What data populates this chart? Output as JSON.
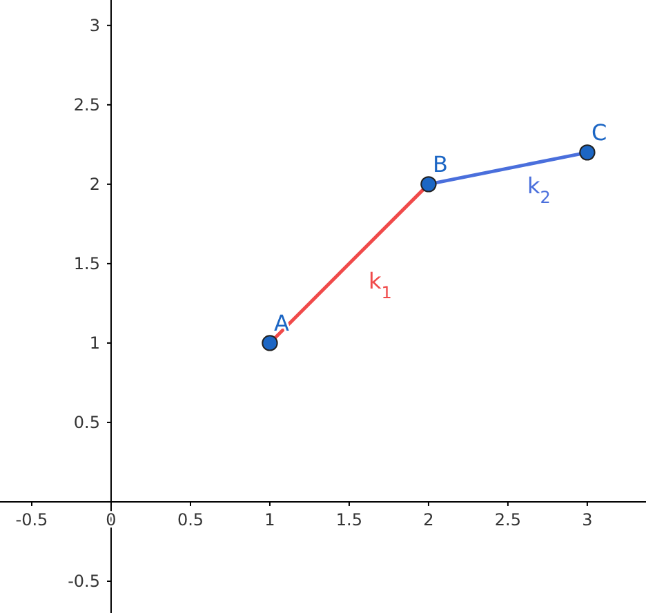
{
  "chart_data": {
    "type": "line",
    "xlim": [
      -0.7,
      3.37
    ],
    "ylim": [
      -0.7,
      3.16
    ],
    "xticks": [
      -0.5,
      0,
      0.5,
      1,
      1.5,
      2,
      2.5,
      3
    ],
    "yticks": [
      -0.5,
      {
        "value": 0,
        "label": null
      },
      0.5,
      1,
      1.5,
      2,
      2.5,
      3
    ],
    "grid": false,
    "series": [
      {
        "name": "k$_{1}$",
        "color": "#f04a4a",
        "x": [
          1,
          2
        ],
        "values": [
          1,
          2
        ]
      },
      {
        "name": "k$_{2}$",
        "color": "#4a6fdc",
        "x": [
          2,
          3
        ],
        "values": [
          2,
          2.2
        ]
      },
      {
        "type": "scatter",
        "color": "#1c66c4",
        "marker": "circle",
        "x": [
          1,
          2,
          3
        ],
        "values": [
          1,
          2,
          2.2
        ]
      }
    ],
    "annotations": [
      {
        "text": "A",
        "x": 1,
        "y": 1
      },
      {
        "text": "B",
        "x": 2,
        "y": 2
      },
      {
        "text": "C",
        "x": 3,
        "y": 2.2
      }
    ]
  }
}
